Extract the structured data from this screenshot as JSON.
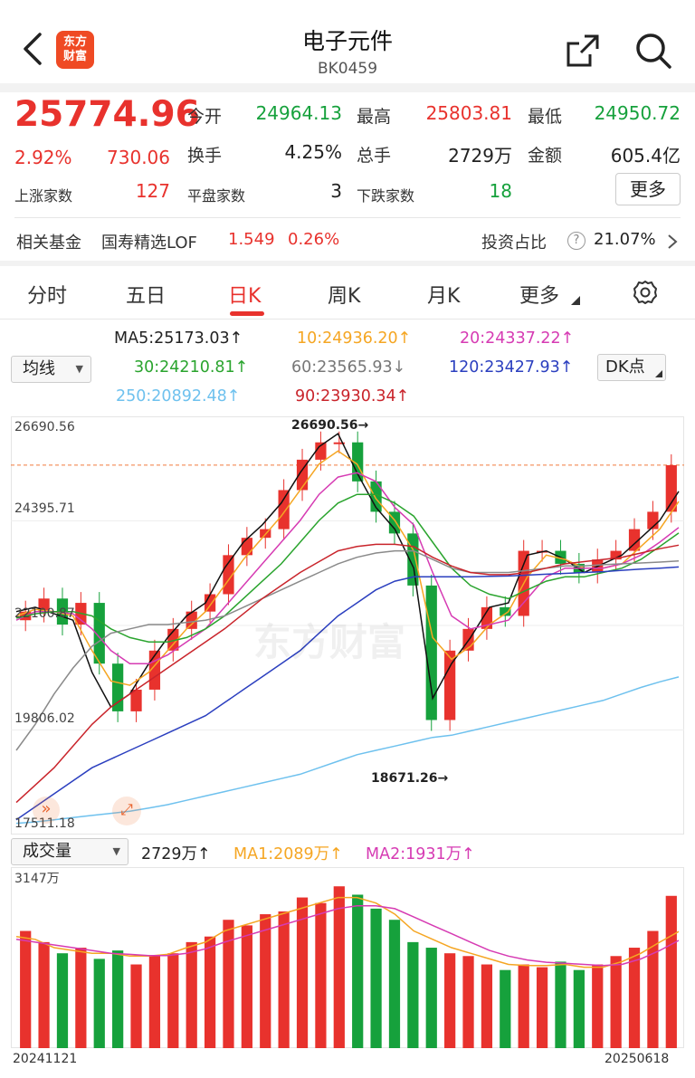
{
  "header": {
    "logo_lines": [
      "东方",
      "财富"
    ],
    "title": "电子元件",
    "code": "BK0459",
    "icons": [
      "back-icon",
      "share-icon",
      "search-icon"
    ]
  },
  "quote": {
    "price": "25774.96",
    "change_pct": "2.92%",
    "change_amt": "730.06",
    "open_label": "今开",
    "open": "24964.13",
    "high_label": "最高",
    "high": "25803.81",
    "low_label": "最低",
    "low": "24950.72",
    "turnover_label": "换手",
    "turnover": "4.25%",
    "volume_label": "总手",
    "volume": "2729万",
    "amount_label": "金额",
    "amount": "605.4亿",
    "up_label": "上涨家数",
    "up": "127",
    "flat_label": "平盘家数",
    "flat": "3",
    "down_label": "下跌家数",
    "down": "18",
    "more": "更多"
  },
  "fund": {
    "label": "相关基金",
    "name": "国寿精选LOF",
    "price": "1.549",
    "pct": "0.26%",
    "ratio_label": "投资占比",
    "help": "?",
    "ratio": "21.07%"
  },
  "tabs": [
    "分时",
    "五日",
    "日K",
    "周K",
    "月K",
    "更多"
  ],
  "active_tab": "日K",
  "ma_panel": {
    "dropdown": "均线",
    "dk_button": "DK点",
    "ma5": "MA5:25173.03↑",
    "ma10": "10:24936.20↑",
    "ma20": "20:24337.22↑",
    "ma30": "30:24210.81↑",
    "ma60": "60:23565.93↓",
    "ma120": "120:23427.93↑",
    "ma250": "250:20892.48↑",
    "ma90": "90:23930.34↑"
  },
  "colors": {
    "up": "#e8322d",
    "down": "#16a13c",
    "ma5": "#111111",
    "ma10": "#f5a623",
    "ma20": "#d63bb3",
    "ma30": "#2aa42e",
    "ma60": "#8a8a8a",
    "ma120": "#2b3fbf",
    "ma250": "#6ec1ee",
    "ma90": "#c9242b"
  },
  "chart_data": [
    {
      "type": "line",
      "title": "",
      "ylabel": "",
      "y_ticks": [
        "26690.56",
        "24395.71",
        "22100.87",
        "19806.02",
        "17511.18"
      ],
      "ylim": [
        17511.18,
        26690.56
      ],
      "max_label": "26690.56→",
      "min_label": "18671.26→",
      "watermark": "东方财富",
      "x_range": [
        "20241121",
        "20250618"
      ],
      "series": [
        {
          "name": "MA5",
          "color": "#111111",
          "values": [
            22400,
            22500,
            22350,
            22200,
            21000,
            20200,
            20500,
            21200,
            21800,
            22300,
            22600,
            23400,
            24000,
            24400,
            24900,
            25600,
            26200,
            26500,
            25600,
            24800,
            24300,
            23400,
            20400,
            21200,
            21800,
            22500,
            22600,
            23700,
            23800,
            23600,
            23300,
            23500,
            23700,
            24100,
            24500,
            25170
          ]
        },
        {
          "name": "10",
          "color": "#f5a623",
          "values": [
            22300,
            22450,
            22400,
            22300,
            21500,
            20800,
            20700,
            21000,
            21500,
            22000,
            22400,
            23000,
            23600,
            24100,
            24600,
            25200,
            25800,
            26100,
            25800,
            25000,
            24500,
            23800,
            21800,
            21300,
            21600,
            22100,
            22400,
            23200,
            23700,
            23600,
            23400,
            23400,
            23500,
            23900,
            24300,
            24936
          ]
        },
        {
          "name": "20",
          "color": "#d63bb3",
          "values": [
            22200,
            22400,
            22400,
            22350,
            22000,
            21500,
            21200,
            21200,
            21400,
            21700,
            22000,
            22500,
            23000,
            23500,
            24000,
            24500,
            25100,
            25500,
            25600,
            25400,
            24800,
            24400,
            23300,
            22300,
            22000,
            22100,
            22200,
            22700,
            23200,
            23400,
            23400,
            23400,
            23500,
            23700,
            24000,
            24337
          ]
        },
        {
          "name": "30",
          "color": "#2aa42e",
          "values": [
            22250,
            22350,
            22400,
            22400,
            22300,
            22000,
            21800,
            21700,
            21700,
            21800,
            22000,
            22300,
            22700,
            23100,
            23500,
            24000,
            24500,
            24900,
            25100,
            25100,
            24900,
            24600,
            24000,
            23400,
            23000,
            22800,
            22700,
            22900,
            23100,
            23200,
            23200,
            23300,
            23400,
            23600,
            23900,
            24210
          ]
        },
        {
          "name": "60",
          "color": "#8a8a8a",
          "values": [
            19200,
            19800,
            20500,
            21100,
            21600,
            21900,
            22000,
            22100,
            22100,
            22150,
            22200,
            22300,
            22500,
            22700,
            22900,
            23100,
            23300,
            23500,
            23650,
            23750,
            23800,
            23800,
            23600,
            23400,
            23300,
            23300,
            23300,
            23350,
            23400,
            23450,
            23450,
            23480,
            23500,
            23520,
            23540,
            23565
          ]
        },
        {
          "name": "120",
          "color": "#2b3fbf",
          "values": [
            17600,
            17900,
            18200,
            18500,
            18800,
            19000,
            19200,
            19400,
            19600,
            19800,
            20000,
            20300,
            20600,
            20900,
            21200,
            21500,
            21900,
            22300,
            22600,
            22900,
            23100,
            23200,
            23200,
            23200,
            23200,
            23210,
            23220,
            23240,
            23260,
            23280,
            23300,
            23320,
            23350,
            23380,
            23400,
            23427
          ]
        },
        {
          "name": "250",
          "color": "#6ec1ee",
          "values": [
            17520,
            17550,
            17600,
            17650,
            17700,
            17750,
            17800,
            17870,
            17950,
            18050,
            18150,
            18250,
            18350,
            18450,
            18550,
            18650,
            18800,
            18950,
            19100,
            19200,
            19300,
            19400,
            19500,
            19550,
            19650,
            19750,
            19850,
            19950,
            20050,
            20150,
            20250,
            20350,
            20500,
            20650,
            20780,
            20892
          ]
        },
        {
          "name": "90",
          "color": "#c9242b",
          "values": [
            18000,
            18400,
            18800,
            19300,
            19800,
            20200,
            20500,
            20800,
            21100,
            21400,
            21700,
            22000,
            22350,
            22700,
            23000,
            23300,
            23550,
            23800,
            23900,
            23950,
            23950,
            23900,
            23650,
            23450,
            23300,
            23250,
            23250,
            23300,
            23400,
            23500,
            23550,
            23600,
            23650,
            23750,
            23850,
            23930
          ]
        }
      ],
      "candles_close": [
        22400,
        22700,
        22100,
        22600,
        21200,
        20100,
        20600,
        21500,
        22000,
        22400,
        22800,
        23700,
        24100,
        24300,
        25200,
        25900,
        26300,
        26300,
        25400,
        24700,
        24200,
        23000,
        19900,
        21500,
        22000,
        22500,
        22300,
        23800,
        23800,
        23500,
        23300,
        23600,
        23800,
        24300,
        24700,
        25774
      ]
    },
    {
      "type": "bar",
      "title": "",
      "dropdown": "成交量",
      "current": "2729万↑",
      "ma1": "MA1:2089万↑",
      "ma2": "MA2:1931万↑",
      "y_max_label": "3147万",
      "ylim": [
        0,
        3147
      ],
      "x_start": "20241121",
      "x_end": "20250618",
      "values": [
        2100,
        1900,
        1700,
        1800,
        1600,
        1750,
        1500,
        1650,
        1700,
        1900,
        2000,
        2300,
        2200,
        2400,
        2450,
        2700,
        2600,
        2900,
        2750,
        2500,
        2300,
        1900,
        1800,
        1700,
        1650,
        1500,
        1400,
        1500,
        1450,
        1550,
        1400,
        1500,
        1650,
        1800,
        2100,
        2729
      ],
      "ma1_values": [
        2000,
        1950,
        1800,
        1750,
        1700,
        1700,
        1650,
        1650,
        1680,
        1800,
        1900,
        2100,
        2200,
        2300,
        2400,
        2500,
        2600,
        2700,
        2700,
        2600,
        2400,
        2100,
        1950,
        1800,
        1700,
        1600,
        1500,
        1480,
        1480,
        1500,
        1450,
        1450,
        1550,
        1700,
        1900,
        2089
      ],
      "ma2_values": [
        1950,
        1900,
        1850,
        1800,
        1750,
        1700,
        1680,
        1660,
        1660,
        1700,
        1780,
        1900,
        2000,
        2100,
        2200,
        2300,
        2400,
        2500,
        2550,
        2550,
        2500,
        2350,
        2200,
        2050,
        1900,
        1750,
        1650,
        1580,
        1540,
        1520,
        1500,
        1480,
        1500,
        1600,
        1750,
        1931
      ]
    }
  ]
}
